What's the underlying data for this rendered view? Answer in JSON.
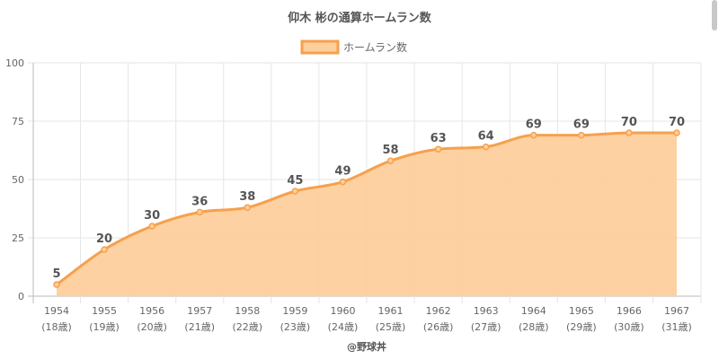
{
  "chart_data": {
    "type": "area",
    "title": "仰木 彬の通算ホームラン数",
    "legend": {
      "label": "ホームラン数",
      "position": "top-center"
    },
    "x": [
      "1954",
      "1955",
      "1956",
      "1957",
      "1958",
      "1959",
      "1960",
      "1961",
      "1962",
      "1963",
      "1964",
      "1965",
      "1966",
      "1967"
    ],
    "x_sublabels": [
      "(18歳)",
      "(19歳)",
      "(20歳)",
      "(21歳)",
      "(22歳)",
      "(23歳)",
      "(24歳)",
      "(25歳)",
      "(26歳)",
      "(27歳)",
      "(28歳)",
      "(29歳)",
      "(30歳)",
      "(31歳)"
    ],
    "series": [
      {
        "name": "ホームラン数",
        "values": [
          5,
          20,
          30,
          36,
          38,
          45,
          49,
          58,
          63,
          64,
          69,
          69,
          70,
          70
        ]
      }
    ],
    "ylim": [
      0,
      100
    ],
    "yticks": [
      0,
      25,
      50,
      75,
      100
    ],
    "grid": true,
    "colors": {
      "line": "#f6a04d",
      "fill": "#fdcf9c",
      "grid": "#e5e5e5",
      "axis": "#bbbbbb"
    }
  },
  "credit": "@野球丼"
}
